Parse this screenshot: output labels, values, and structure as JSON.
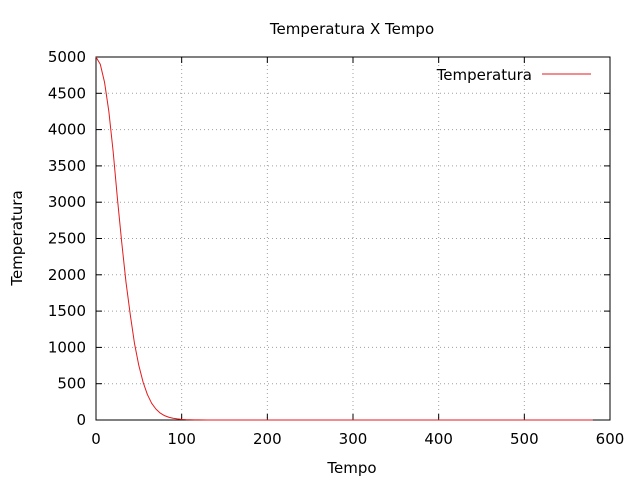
{
  "chart_data": {
    "type": "line",
    "title": "Temperatura X Tempo",
    "xlabel": "Tempo",
    "ylabel": "Temperatura",
    "xlim": [
      0,
      600
    ],
    "ylim": [
      0,
      5000
    ],
    "xticks": [
      0,
      100,
      200,
      300,
      400,
      500,
      600
    ],
    "yticks": [
      0,
      500,
      1000,
      1500,
      2000,
      2500,
      3000,
      3500,
      4000,
      4500,
      5000
    ],
    "grid": true,
    "legend_position": "top-right",
    "series": [
      {
        "name": "Temperatura",
        "color": "#e41a1c",
        "x": [
          0,
          5,
          10,
          15,
          20,
          25,
          30,
          35,
          40,
          45,
          50,
          55,
          60,
          65,
          70,
          75,
          80,
          85,
          90,
          95,
          100,
          105,
          110,
          115,
          120,
          130,
          140,
          150,
          200,
          300,
          400,
          500,
          580
        ],
        "y": [
          5000,
          4900,
          4650,
          4250,
          3700,
          3050,
          2450,
          1900,
          1450,
          1050,
          750,
          520,
          350,
          230,
          150,
          95,
          60,
          38,
          24,
          15,
          9,
          5,
          3,
          2,
          1,
          0.5,
          0.2,
          0.1,
          0,
          0,
          0,
          0,
          0
        ]
      }
    ]
  }
}
